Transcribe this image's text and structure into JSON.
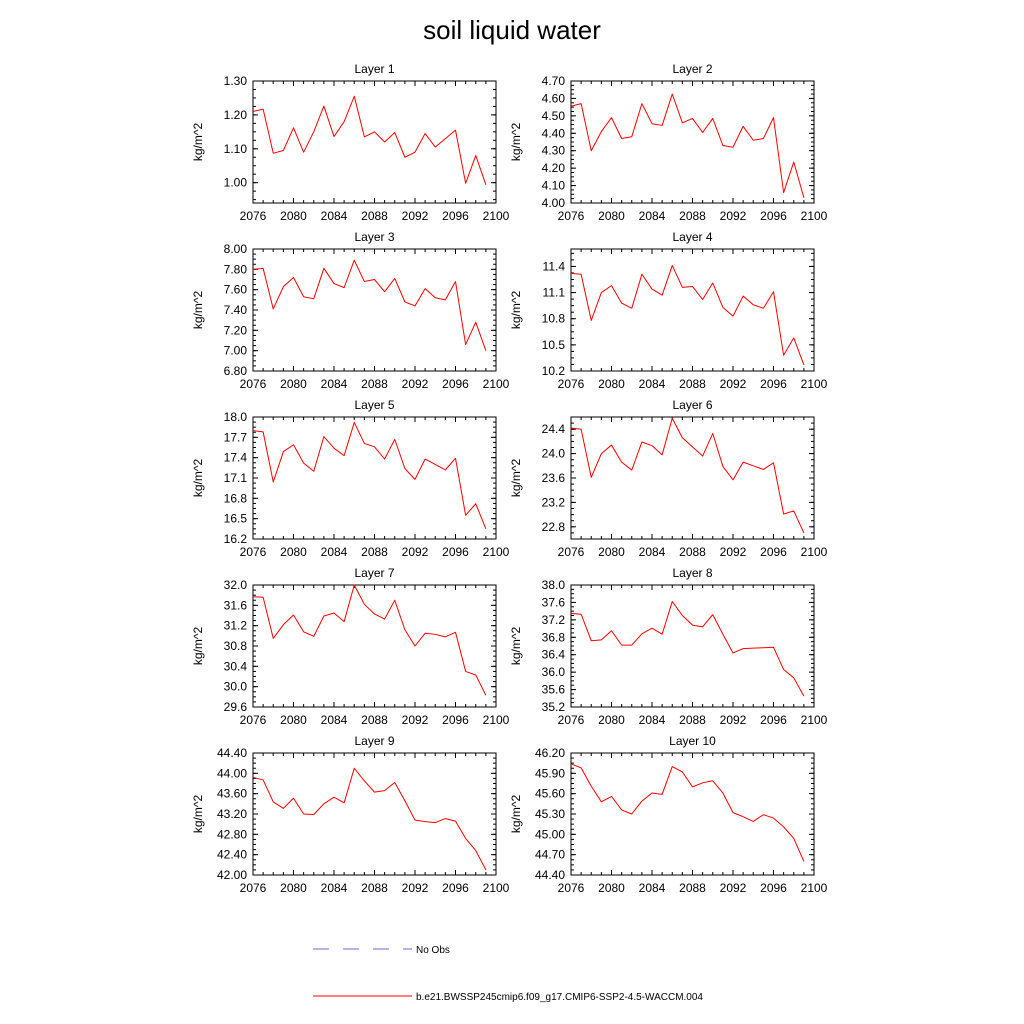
{
  "title": "soil liquid water",
  "ylabel": "kg/m^2",
  "x": [
    2076,
    2077,
    2078,
    2079,
    2080,
    2081,
    2082,
    2083,
    2084,
    2085,
    2086,
    2087,
    2088,
    2089,
    2090,
    2091,
    2092,
    2093,
    2094,
    2095,
    2096,
    2097,
    2098,
    2099
  ],
  "xticks": [
    "2076",
    "2080",
    "2084",
    "2088",
    "2092",
    "2096",
    "2100"
  ],
  "xlim": [
    2076,
    2100
  ],
  "colors": {
    "model_line": "#ff0000",
    "obs_line": "#6a6ad0",
    "axes": "#000000"
  },
  "legend": {
    "obs_label": "No Obs",
    "model_label": "b.e21.BWSSP245cmip6.f09_g17.CMIP6-SSP2-4.5-WACCM.004"
  },
  "chart_data": [
    {
      "type": "line",
      "title": "Layer 1",
      "ylim": [
        0.94,
        1.3
      ],
      "yticks": [
        "1.00",
        "1.10",
        "1.20",
        "1.30"
      ],
      "ytick_values": [
        1.0,
        1.1,
        1.2,
        1.3
      ],
      "series": [
        {
          "name": "b.e21.BWSSP245cmip6.f09_g17.CMIP6-SSP2-4.5-WACCM.004",
          "values": [
            1.21,
            1.217,
            1.087,
            1.095,
            1.162,
            1.09,
            1.15,
            1.226,
            1.136,
            1.18,
            1.255,
            1.135,
            1.15,
            1.12,
            1.148,
            1.075,
            1.09,
            1.145,
            1.105,
            1.13,
            1.155,
            0.998,
            1.08,
            0.994
          ]
        }
      ]
    },
    {
      "type": "line",
      "title": "Layer 2",
      "ylim": [
        4.0,
        4.7
      ],
      "yticks": [
        "4.00",
        "4.10",
        "4.20",
        "4.30",
        "4.40",
        "4.50",
        "4.60",
        "4.70"
      ],
      "ytick_values": [
        4.0,
        4.1,
        4.2,
        4.3,
        4.4,
        4.5,
        4.6,
        4.7
      ],
      "series": [
        {
          "name": "b.e21.BWSSP245cmip6.f09_g17.CMIP6-SSP2-4.5-WACCM.004",
          "values": [
            4.555,
            4.57,
            4.3,
            4.41,
            4.49,
            4.37,
            4.38,
            4.57,
            4.455,
            4.445,
            4.625,
            4.46,
            4.485,
            4.405,
            4.485,
            4.33,
            4.32,
            4.44,
            4.36,
            4.37,
            4.49,
            4.06,
            4.235,
            4.03
          ]
        }
      ]
    },
    {
      "type": "line",
      "title": "Layer 3",
      "ylim": [
        6.8,
        8.0
      ],
      "yticks": [
        "6.80",
        "7.00",
        "7.20",
        "7.40",
        "7.60",
        "7.80",
        "8.00"
      ],
      "ytick_values": [
        6.8,
        7.0,
        7.2,
        7.4,
        7.6,
        7.8,
        8.0
      ],
      "series": [
        {
          "name": "b.e21.BWSSP245cmip6.f09_g17.CMIP6-SSP2-4.5-WACCM.004",
          "values": [
            7.8,
            7.81,
            7.41,
            7.63,
            7.72,
            7.53,
            7.51,
            7.81,
            7.66,
            7.62,
            7.89,
            7.68,
            7.7,
            7.58,
            7.71,
            7.48,
            7.44,
            7.61,
            7.52,
            7.5,
            7.68,
            7.06,
            7.28,
            7.0
          ]
        }
      ]
    },
    {
      "type": "line",
      "title": "Layer 4",
      "ylim": [
        10.2,
        11.6
      ],
      "yticks": [
        "10.2",
        "10.5",
        "10.8",
        "11.1",
        "11.4"
      ],
      "ytick_values": [
        10.2,
        10.5,
        10.8,
        11.1,
        11.4
      ],
      "series": [
        {
          "name": "b.e21.BWSSP245cmip6.f09_g17.CMIP6-SSP2-4.5-WACCM.004",
          "values": [
            11.32,
            11.31,
            10.78,
            11.1,
            11.18,
            10.98,
            10.92,
            11.31,
            11.14,
            11.07,
            11.41,
            11.16,
            11.17,
            11.02,
            11.21,
            10.93,
            10.83,
            11.06,
            10.96,
            10.92,
            11.11,
            10.38,
            10.58,
            10.27
          ]
        }
      ]
    },
    {
      "type": "line",
      "title": "Layer 5",
      "ylim": [
        16.2,
        18.0
      ],
      "yticks": [
        "16.2",
        "16.5",
        "16.8",
        "17.1",
        "17.4",
        "17.7",
        "18.0"
      ],
      "ytick_values": [
        16.2,
        16.5,
        16.8,
        17.1,
        17.4,
        17.7,
        18.0
      ],
      "series": [
        {
          "name": "b.e21.BWSSP245cmip6.f09_g17.CMIP6-SSP2-4.5-WACCM.004",
          "values": [
            17.8,
            17.78,
            17.04,
            17.49,
            17.59,
            17.32,
            17.2,
            17.71,
            17.54,
            17.43,
            17.92,
            17.61,
            17.56,
            17.38,
            17.67,
            17.24,
            17.08,
            17.38,
            17.3,
            17.22,
            17.39,
            16.55,
            16.72,
            16.35
          ]
        }
      ]
    },
    {
      "type": "line",
      "title": "Layer 6",
      "ylim": [
        22.6,
        24.6
      ],
      "yticks": [
        "22.8",
        "23.2",
        "23.6",
        "24.0",
        "24.4"
      ],
      "ytick_values": [
        22.8,
        23.2,
        23.6,
        24.0,
        24.4
      ],
      "series": [
        {
          "name": "b.e21.BWSSP245cmip6.f09_g17.CMIP6-SSP2-4.5-WACCM.004",
          "values": [
            24.42,
            24.4,
            23.61,
            24.0,
            24.14,
            23.86,
            23.73,
            24.19,
            24.13,
            23.98,
            24.58,
            24.26,
            24.11,
            23.96,
            24.33,
            23.79,
            23.57,
            23.86,
            23.8,
            23.74,
            23.85,
            23.01,
            23.06,
            22.7
          ]
        }
      ]
    },
    {
      "type": "line",
      "title": "Layer 7",
      "ylim": [
        29.6,
        32.0
      ],
      "yticks": [
        "29.6",
        "30.0",
        "30.4",
        "30.8",
        "31.2",
        "31.6",
        "32.0"
      ],
      "ytick_values": [
        29.6,
        30.0,
        30.4,
        30.8,
        31.2,
        31.6,
        32.0
      ],
      "series": [
        {
          "name": "b.e21.BWSSP245cmip6.f09_g17.CMIP6-SSP2-4.5-WACCM.004",
          "values": [
            31.77,
            31.76,
            30.95,
            31.22,
            31.41,
            31.08,
            30.99,
            31.39,
            31.45,
            31.28,
            32.0,
            31.62,
            31.43,
            31.33,
            31.7,
            31.12,
            30.8,
            31.05,
            31.03,
            30.98,
            31.07,
            30.3,
            30.23,
            29.83
          ]
        }
      ]
    },
    {
      "type": "line",
      "title": "Layer 8",
      "ylim": [
        35.2,
        38.0
      ],
      "yticks": [
        "35.2",
        "35.6",
        "36.0",
        "36.4",
        "36.8",
        "37.2",
        "37.6",
        "38.0"
      ],
      "ytick_values": [
        35.2,
        35.6,
        36.0,
        36.4,
        36.8,
        37.2,
        37.6,
        38.0
      ],
      "series": [
        {
          "name": "b.e21.BWSSP245cmip6.f09_g17.CMIP6-SSP2-4.5-WACCM.004",
          "values": [
            37.35,
            37.33,
            36.72,
            36.74,
            36.95,
            36.62,
            36.62,
            36.88,
            37.01,
            36.87,
            37.62,
            37.3,
            37.08,
            37.04,
            37.32,
            36.87,
            36.44,
            36.54,
            36.55,
            36.56,
            36.57,
            36.06,
            35.87,
            35.45
          ]
        }
      ]
    },
    {
      "type": "line",
      "title": "Layer 9",
      "ylim": [
        42.0,
        44.4
      ],
      "yticks": [
        "42.00",
        "42.40",
        "42.80",
        "43.20",
        "43.60",
        "44.00",
        "44.40"
      ],
      "ytick_values": [
        42.0,
        42.4,
        42.8,
        43.2,
        43.6,
        44.0,
        44.4
      ],
      "series": [
        {
          "name": "b.e21.BWSSP245cmip6.f09_g17.CMIP6-SSP2-4.5-WACCM.004",
          "values": [
            43.92,
            43.87,
            43.44,
            43.31,
            43.51,
            43.2,
            43.19,
            43.4,
            43.53,
            43.42,
            44.1,
            43.85,
            43.63,
            43.66,
            43.82,
            43.46,
            43.08,
            43.05,
            43.03,
            43.11,
            43.06,
            42.72,
            42.48,
            42.1
          ]
        }
      ]
    },
    {
      "type": "line",
      "title": "Layer 10",
      "ylim": [
        44.4,
        46.2
      ],
      "yticks": [
        "44.40",
        "44.70",
        "45.00",
        "45.30",
        "45.60",
        "45.90",
        "46.20"
      ],
      "ytick_values": [
        44.4,
        44.7,
        45.0,
        45.3,
        45.6,
        45.9,
        46.2
      ],
      "series": [
        {
          "name": "b.e21.BWSSP245cmip6.f09_g17.CMIP6-SSP2-4.5-WACCM.004",
          "values": [
            46.04,
            45.98,
            45.71,
            45.48,
            45.56,
            45.36,
            45.3,
            45.49,
            45.61,
            45.59,
            46.0,
            45.92,
            45.7,
            45.76,
            45.79,
            45.61,
            45.32,
            45.26,
            45.19,
            45.29,
            45.24,
            45.11,
            44.94,
            44.6
          ]
        }
      ]
    }
  ]
}
